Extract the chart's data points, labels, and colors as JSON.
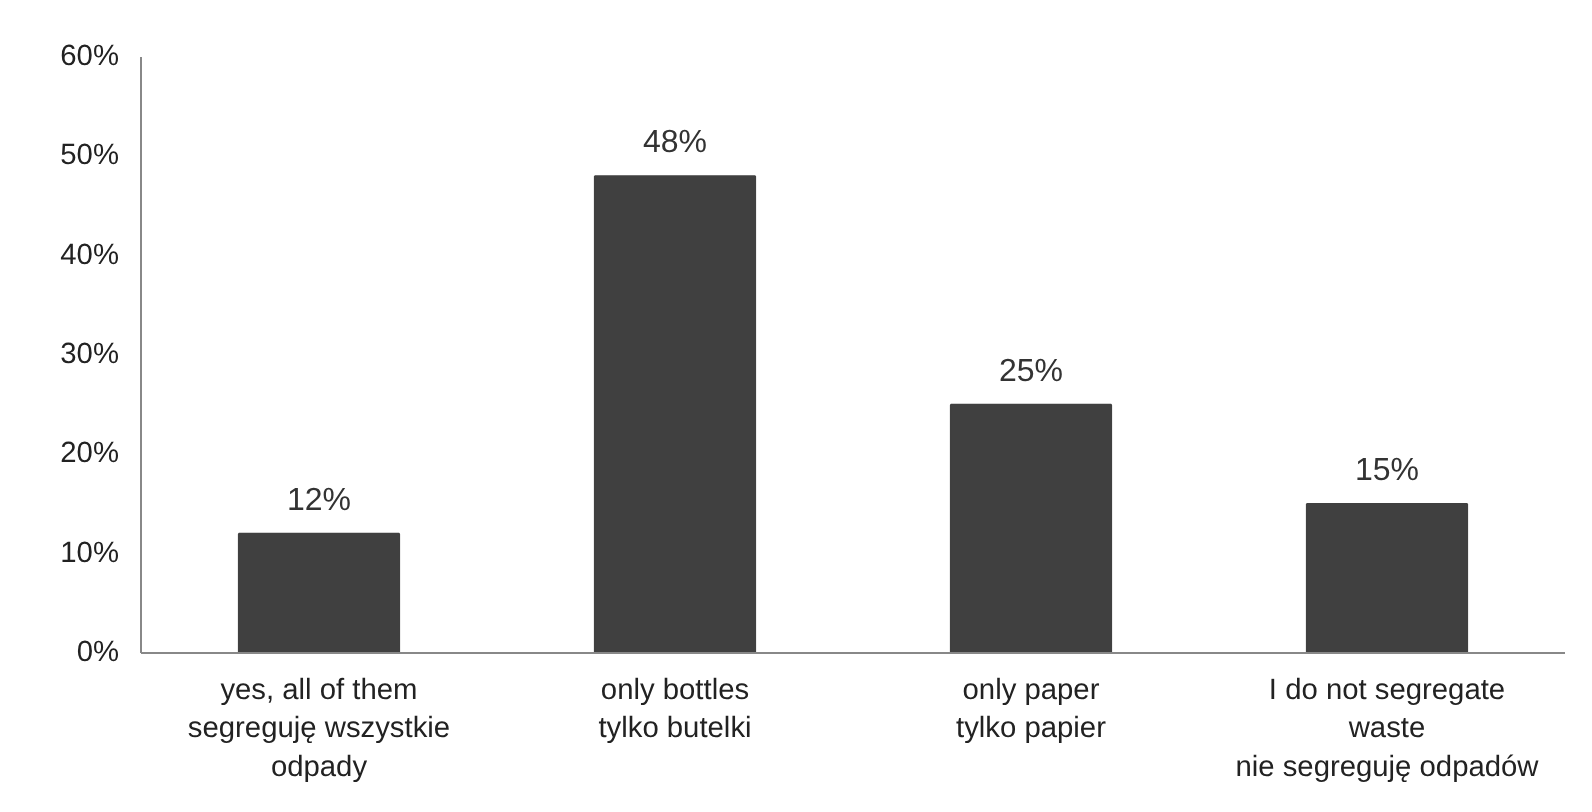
{
  "chart_data": {
    "type": "bar",
    "categories": [
      "yes, all of them\nsegreguję wszystkie\nodpady",
      "only bottles\ntylko butelki",
      "only paper\ntylko papier",
      "I do not segregate\nwaste\nnie segreguję odpadów"
    ],
    "values": [
      12,
      48,
      25,
      15
    ],
    "color": "#404040",
    "data_labels": true,
    "value_labels": [
      "12%",
      "48%",
      "25%",
      "15%"
    ],
    "ylim": [
      0,
      60
    ],
    "yticks": [
      {
        "value": 0,
        "label": "0%"
      },
      {
        "value": 10,
        "label": "10%"
      },
      {
        "value": 20,
        "label": "20%"
      },
      {
        "value": 30,
        "label": "30%"
      },
      {
        "value": 40,
        "label": "40%"
      },
      {
        "value": 50,
        "label": "50%"
      },
      {
        "value": 60,
        "label": "60%"
      }
    ],
    "grid": false
  }
}
